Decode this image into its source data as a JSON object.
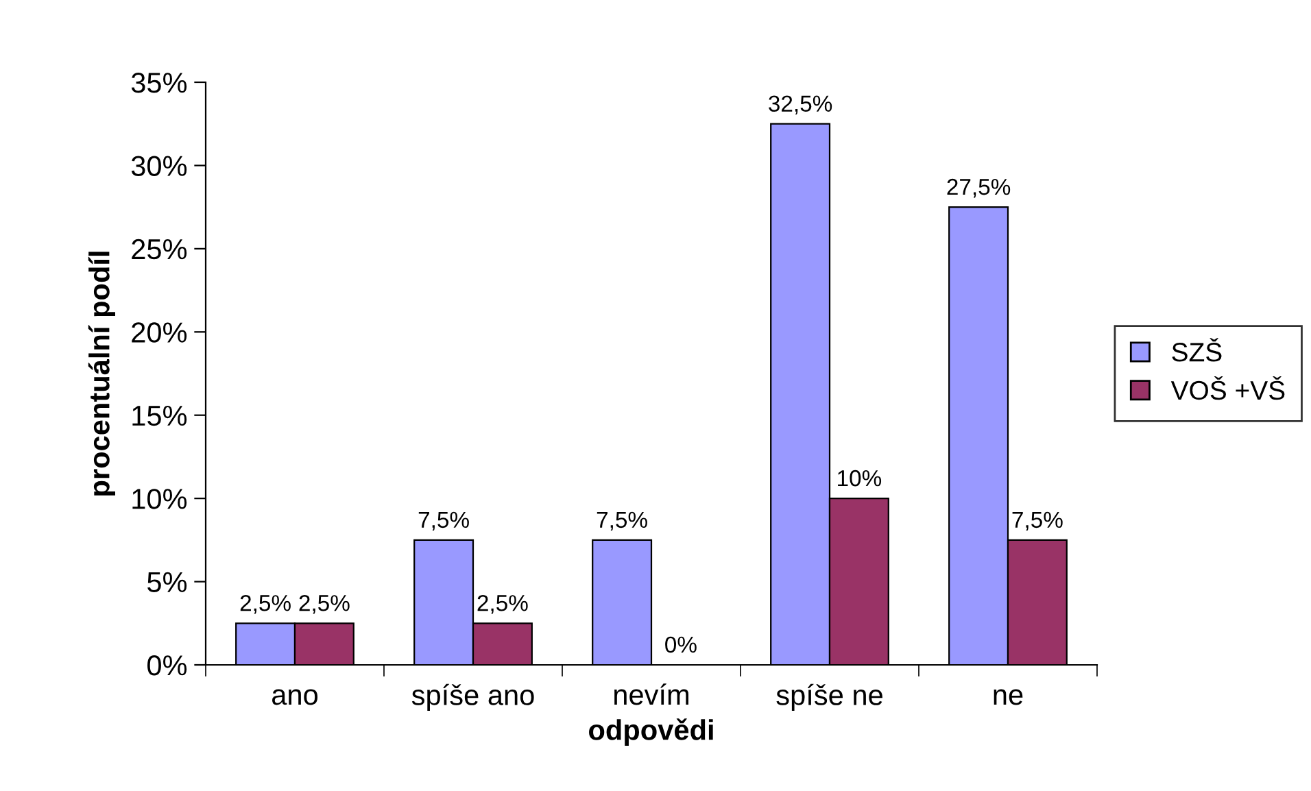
{
  "chart_data": {
    "type": "bar",
    "xlabel": "odpovědi",
    "ylabel": "procentuální podíl",
    "categories": [
      "ano",
      "spíše ano",
      "nevím",
      "spíše ne",
      "ne"
    ],
    "series": [
      {
        "name": "SZŠ",
        "color": "#9999ff",
        "values": [
          2.5,
          7.5,
          7.5,
          32.5,
          27.5
        ],
        "value_labels": [
          "2,5%",
          "7,5%",
          "7,5%",
          "32,5%",
          "27,5%"
        ]
      },
      {
        "name": "VOŠ +VŠ",
        "color": "#993366",
        "values": [
          2.5,
          2.5,
          0,
          10,
          7.5
        ],
        "value_labels": [
          "2,5%",
          "2,5%",
          "0%",
          "10%",
          "7,5%"
        ]
      }
    ],
    "ylim": [
      0,
      35
    ],
    "yticks": [
      {
        "value": 0,
        "label": "0%"
      },
      {
        "value": 5,
        "label": "5%"
      },
      {
        "value": 10,
        "label": "10%"
      },
      {
        "value": 15,
        "label": "15%"
      },
      {
        "value": 20,
        "label": "20%"
      },
      {
        "value": 25,
        "label": "25%"
      },
      {
        "value": 30,
        "label": "30%"
      },
      {
        "value": 35,
        "label": "35%"
      }
    ],
    "legend": "right",
    "grid": false
  }
}
